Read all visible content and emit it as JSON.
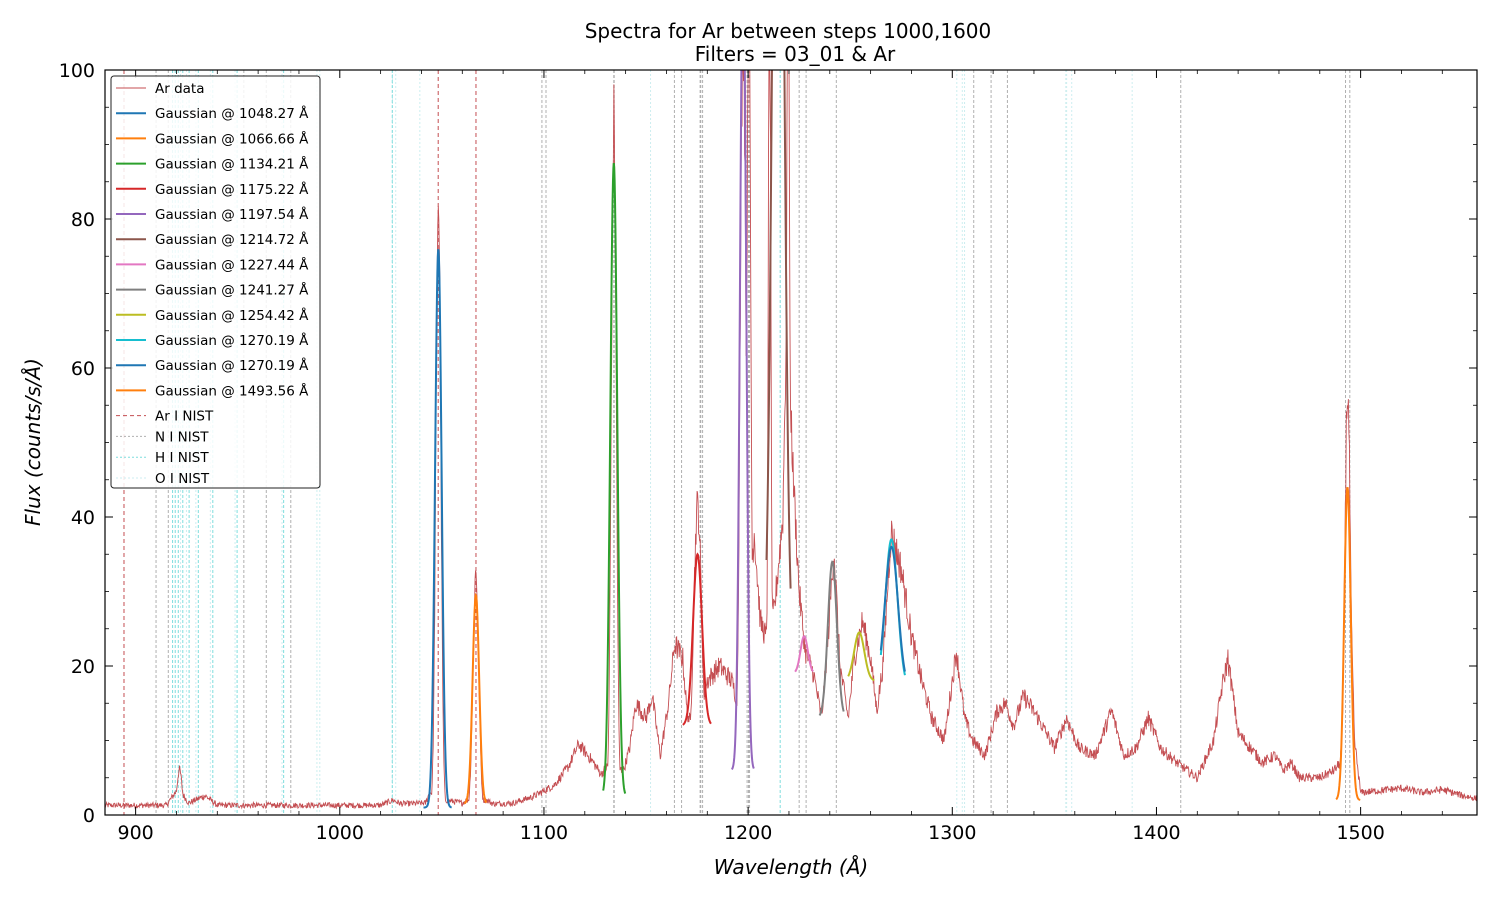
{
  "chart_data": {
    "type": "line",
    "title": "Spectra for Ar between steps 1000,1600",
    "subtitle": "Filters = 03_01 & Ar",
    "xlabel": "Wavelength (Å)",
    "ylabel": "Flux (counts/s/Å)",
    "xlim": [
      885,
      1557
    ],
    "ylim": [
      0,
      100
    ],
    "xticks": [
      900,
      1000,
      1100,
      1200,
      1300,
      1400,
      1500
    ],
    "yticks": [
      0,
      20,
      40,
      60,
      80,
      100
    ],
    "grid": false,
    "legend_position": "top-left",
    "data_series": {
      "name": "Ar data",
      "color": "#c44e52",
      "baseline": [
        [
          885,
          1.3
        ],
        [
          915,
          1.3
        ],
        [
          921,
          3.6
        ],
        [
          926,
          1.6
        ],
        [
          934,
          2.6
        ],
        [
          940,
          1.3
        ],
        [
          1020,
          1.3
        ],
        [
          1026,
          2.0
        ],
        [
          1030,
          1.5
        ],
        [
          1042,
          1.6
        ],
        [
          1044,
          3.0
        ],
        [
          1050,
          3.0
        ],
        [
          1052,
          2.0
        ],
        [
          1060,
          1.6
        ],
        [
          1062,
          2.0
        ],
        [
          1072,
          2.0
        ],
        [
          1075,
          1.5
        ],
        [
          1085,
          1.6
        ],
        [
          1095,
          2.5
        ],
        [
          1105,
          4.0
        ],
        [
          1112,
          6.5
        ],
        [
          1117,
          9.5
        ],
        [
          1123,
          7.5
        ],
        [
          1128,
          5.5
        ],
        [
          1131,
          6.5
        ],
        [
          1139,
          6.0
        ],
        [
          1142,
          9.0
        ],
        [
          1145,
          15.0
        ],
        [
          1150,
          13.0
        ],
        [
          1153,
          16.0
        ],
        [
          1157,
          8.0
        ],
        [
          1161,
          15.0
        ],
        [
          1164,
          23.0
        ],
        [
          1168,
          21.0
        ],
        [
          1170,
          14.0
        ],
        [
          1174,
          10.0
        ],
        [
          1180,
          18.0
        ],
        [
          1186,
          20.0
        ],
        [
          1192,
          18.0
        ],
        [
          1196,
          14.0
        ],
        [
          1203,
          38.0
        ],
        [
          1206,
          26.0
        ],
        [
          1210,
          23.0
        ],
        [
          1213,
          28.0
        ],
        [
          1217,
          40.0
        ],
        [
          1219,
          70.0
        ],
        [
          1222,
          46.0
        ],
        [
          1225,
          30.0
        ],
        [
          1228,
          22.0
        ],
        [
          1232,
          19.0
        ],
        [
          1236,
          13.0
        ],
        [
          1239,
          23.0
        ],
        [
          1242,
          36.0
        ],
        [
          1245,
          20.0
        ],
        [
          1249,
          13.0
        ],
        [
          1252,
          21.0
        ],
        [
          1256,
          26.0
        ],
        [
          1260,
          21.0
        ],
        [
          1263,
          14.0
        ],
        [
          1266,
          20.0
        ],
        [
          1270,
          38.0
        ],
        [
          1275,
          33.0
        ],
        [
          1280,
          24.0
        ],
        [
          1285,
          18.0
        ],
        [
          1290,
          13.0
        ],
        [
          1296,
          10.0
        ],
        [
          1302,
          22.0
        ],
        [
          1306,
          13.0
        ],
        [
          1310,
          10.0
        ],
        [
          1316,
          8.0
        ],
        [
          1322,
          14.0
        ],
        [
          1326,
          15.0
        ],
        [
          1330,
          12.0
        ],
        [
          1335,
          16.0
        ],
        [
          1342,
          13.0
        ],
        [
          1350,
          9.0
        ],
        [
          1356,
          13.0
        ],
        [
          1362,
          9.0
        ],
        [
          1370,
          8.0
        ],
        [
          1378,
          14.0
        ],
        [
          1384,
          8.0
        ],
        [
          1390,
          9.0
        ],
        [
          1396,
          13.0
        ],
        [
          1402,
          9.0
        ],
        [
          1410,
          7.0
        ],
        [
          1420,
          5.0
        ],
        [
          1428,
          10.0
        ],
        [
          1432,
          17.0
        ],
        [
          1435,
          21.0
        ],
        [
          1440,
          11.0
        ],
        [
          1446,
          9.0
        ],
        [
          1452,
          7.0
        ],
        [
          1458,
          8.0
        ],
        [
          1462,
          6.0
        ],
        [
          1466,
          7.0
        ],
        [
          1470,
          5.0
        ],
        [
          1480,
          5.0
        ],
        [
          1487,
          6.0
        ],
        [
          1490,
          7.0
        ],
        [
          1493,
          20.0
        ],
        [
          1495,
          30.0
        ],
        [
          1497,
          10.0
        ],
        [
          1500,
          3.0
        ],
        [
          1510,
          3.3
        ],
        [
          1520,
          3.6
        ],
        [
          1530,
          3.0
        ],
        [
          1540,
          3.4
        ],
        [
          1550,
          2.6
        ],
        [
          1557,
          2.2
        ]
      ],
      "lines": [
        {
          "center": 921.5,
          "peak": 5.0,
          "sigma": 1.2
        },
        {
          "center": 1048.27,
          "peak": 82.0,
          "sigma": 1.2
        },
        {
          "center": 1066.66,
          "peak": 32.0,
          "sigma": 1.4
        },
        {
          "center": 1134.21,
          "peak": 91.0,
          "sigma": 1.2
        },
        {
          "center": 1175.22,
          "peak": 38.0,
          "sigma": 2.0
        },
        {
          "center": 1197.54,
          "peak": 100.0,
          "sigma": 1.4
        },
        {
          "center": 1200.3,
          "peak": 100.0,
          "sigma": 1.0
        },
        {
          "center": 1210.5,
          "peak": 100.0,
          "sigma": 0.7
        },
        {
          "center": 1219.6,
          "peak": 100.0,
          "sigma": 0.7
        },
        {
          "center": 1493.56,
          "peak": 50.0,
          "sigma": 1.3
        }
      ]
    },
    "gaussian_series": [
      {
        "name": "Gaussian @ 1048.27 Å",
        "center": 1048.27,
        "amplitude": 75.0,
        "sigma": 1.6,
        "offset": 1.0,
        "range": [
          1041,
          1055
        ],
        "color": "#1f77b4"
      },
      {
        "name": "Gaussian @ 1066.66 Å",
        "center": 1066.66,
        "amplitude": 28.0,
        "sigma": 1.6,
        "offset": 1.5,
        "range": [
          1061,
          1072
        ],
        "color": "#ff7f0e"
      },
      {
        "name": "Gaussian @ 1134.21 Å",
        "center": 1134.21,
        "amplitude": 85.0,
        "sigma": 1.7,
        "offset": 2.5,
        "range": [
          1129,
          1140
        ],
        "color": "#2ca02c"
      },
      {
        "name": "Gaussian @ 1175.22 Å",
        "center": 1175.22,
        "amplitude": 23.0,
        "sigma": 2.2,
        "offset": 12.0,
        "range": [
          1168,
          1182
        ],
        "color": "#d62728"
      },
      {
        "name": "Gaussian @ 1197.54 Å",
        "center": 1197.54,
        "amplitude": 110.0,
        "sigma": 1.5,
        "offset": 6.0,
        "range": [
          1192,
          1203
        ],
        "color": "#9467bd"
      },
      {
        "name": "Gaussian @ 1214.72 Å",
        "center": 1214.72,
        "amplitude": 160.0,
        "sigma": 2.6,
        "offset": 20.0,
        "range": [
          1209,
          1221
        ],
        "color": "#8c564b"
      },
      {
        "name": "Gaussian @ 1227.44 Å",
        "center": 1227.44,
        "amplitude": 5.0,
        "sigma": 1.8,
        "offset": 19.0,
        "range": [
          1223,
          1232
        ],
        "color": "#e377c2"
      },
      {
        "name": "Gaussian @ 1241.27 Å",
        "center": 1241.27,
        "amplitude": 21.0,
        "sigma": 2.2,
        "offset": 13.0,
        "range": [
          1235,
          1247
        ],
        "color": "#7f7f7f"
      },
      {
        "name": "Gaussian @ 1254.42 Å",
        "center": 1254.42,
        "amplitude": 6.5,
        "sigma": 2.5,
        "offset": 18.0,
        "range": [
          1249,
          1262
        ],
        "color": "#bcbd22"
      },
      {
        "name": "Gaussian @ 1270.19 Å",
        "center": 1270.19,
        "amplitude": 20.0,
        "sigma": 3.0,
        "offset": 17.0,
        "range": [
          1265,
          1277
        ],
        "color": "#17becf"
      },
      {
        "name": "Gaussian @ 1270.19 Å",
        "center": 1270.19,
        "amplitude": 19.0,
        "sigma": 3.2,
        "offset": 17.0,
        "range": [
          1265,
          1277
        ],
        "color": "#1f77b4"
      },
      {
        "name": "Gaussian @ 1493.56 Å",
        "center": 1493.56,
        "amplitude": 42.0,
        "sigma": 1.6,
        "offset": 2.0,
        "range": [
          1488,
          1500
        ],
        "color": "#ff7f0e"
      }
    ],
    "reference_lines": [
      {
        "name": "Ar I NIST",
        "color": "#c44e52",
        "dash": "4,3",
        "positions": [
          894.3,
          1048.2,
          1066.7
        ]
      },
      {
        "name": "N I NIST",
        "color": "#b0b0b0",
        "dash": "3,2",
        "positions": [
          910.0,
          916.0,
          953.0,
          964.0,
          976.0,
          1099.0,
          1101.0,
          1134.2,
          1134.4,
          1163.9,
          1167.4,
          1176.5,
          1176.8,
          1177.7,
          1199.5,
          1200.2,
          1200.7,
          1225.0,
          1228.4,
          1243.2,
          1310.5,
          1319.0,
          1327.0,
          1411.9,
          1492.6,
          1494.7
        ]
      },
      {
        "name": "H I NIST",
        "color": "#7fdede",
        "dash": "3,2",
        "positions": [
          918.1,
          919.4,
          920.9,
          923.1,
          926.2,
          930.7,
          937.8,
          949.7,
          972.5,
          1025.7,
          1215.7
        ]
      },
      {
        "name": "O I NIST",
        "color": "#cdeef0",
        "dash": "2,2",
        "positions": [
          922.0,
          924.9,
          929.5,
          936.6,
          948.7,
          971.7,
          988.8,
          990.2,
          1025.8,
          1027.4,
          1039.2,
          1152.2,
          1302.2,
          1304.9,
          1306.0,
          1355.6,
          1358.5,
          1388.1,
          1356.0
        ]
      }
    ],
    "legend": [
      {
        "label": "Ar data",
        "color": "#c44e52",
        "style": "thin"
      },
      {
        "label": "Gaussian @ 1048.27 Å",
        "color": "#1f77b4",
        "style": "solid"
      },
      {
        "label": "Gaussian @ 1066.66 Å",
        "color": "#ff7f0e",
        "style": "solid"
      },
      {
        "label": "Gaussian @ 1134.21 Å",
        "color": "#2ca02c",
        "style": "solid"
      },
      {
        "label": "Gaussian @ 1175.22 Å",
        "color": "#d62728",
        "style": "solid"
      },
      {
        "label": "Gaussian @ 1197.54 Å",
        "color": "#9467bd",
        "style": "solid"
      },
      {
        "label": "Gaussian @ 1214.72 Å",
        "color": "#8c564b",
        "style": "solid"
      },
      {
        "label": "Gaussian @ 1227.44 Å",
        "color": "#e377c2",
        "style": "solid"
      },
      {
        "label": "Gaussian @ 1241.27 Å",
        "color": "#7f7f7f",
        "style": "solid"
      },
      {
        "label": "Gaussian @ 1254.42 Å",
        "color": "#bcbd22",
        "style": "solid"
      },
      {
        "label": "Gaussian @ 1270.19 Å",
        "color": "#17becf",
        "style": "solid"
      },
      {
        "label": "Gaussian @ 1270.19 Å",
        "color": "#1f77b4",
        "style": "solid"
      },
      {
        "label": "Gaussian @ 1493.56 Å",
        "color": "#ff7f0e",
        "style": "solid"
      },
      {
        "label": "Ar I NIST",
        "color": "#c44e52",
        "style": "dashed"
      },
      {
        "label": "N I NIST",
        "color": "#b0b0b0",
        "style": "dotted"
      },
      {
        "label": "H I NIST",
        "color": "#7fdede",
        "style": "dotted"
      },
      {
        "label": "O I NIST",
        "color": "#cdeef0",
        "style": "dotted"
      }
    ]
  }
}
